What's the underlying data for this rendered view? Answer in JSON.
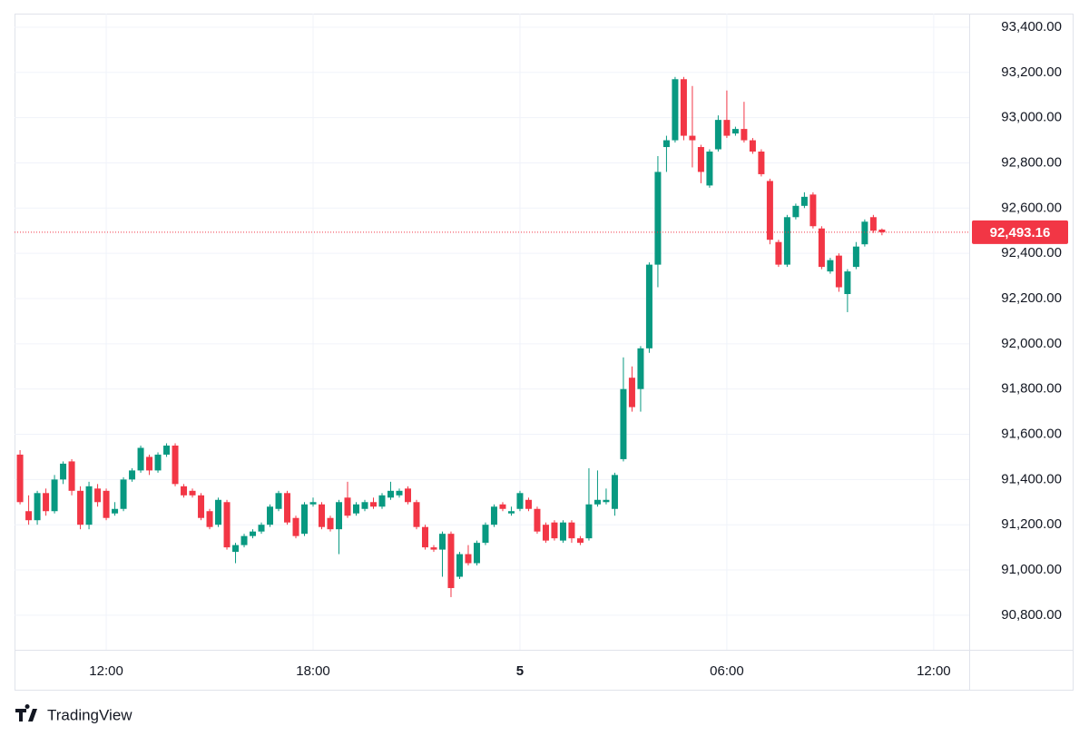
{
  "chart_data": {
    "type": "candlestick",
    "x": [
      -14.5,
      -14.25,
      -14,
      -13.75,
      -13.5,
      -13.25,
      -13,
      -12.75,
      -12.5,
      -12.25,
      -12,
      -11.75,
      -11.5,
      -11.25,
      -11,
      -10.75,
      -10.5,
      -10.25,
      -10,
      -9.75,
      -9.5,
      -9.25,
      -9,
      -8.75,
      -8.5,
      -8.25,
      -8,
      -7.75,
      -7.5,
      -7.25,
      -7,
      -6.75,
      -6.5,
      -6.25,
      -6,
      -5.75,
      -5.5,
      -5.25,
      -5,
      -4.75,
      -4.5,
      -4.25,
      -4,
      -3.75,
      -3.5,
      -3.25,
      -3,
      -2.75,
      -2.5,
      -2.25,
      -2,
      -1.75,
      -1.5,
      -1.25,
      -1,
      -0.75,
      -0.5,
      -0.25,
      0,
      0.25,
      0.5,
      0.75,
      1,
      1.25,
      1.5,
      1.75,
      2,
      2.25,
      2.5,
      2.75,
      3,
      3.25,
      3.5,
      3.75,
      4,
      4.25,
      4.5,
      4.75,
      5,
      5.25,
      5.5,
      5.75,
      6,
      6.25,
      6.5,
      6.75,
      7,
      7.25,
      7.5,
      7.75,
      8,
      8.25,
      8.5,
      8.75,
      9,
      9.25,
      9.5,
      9.75,
      10,
      10.25,
      10.5
    ],
    "open": [
      91510,
      91260,
      91220,
      91340,
      91260,
      91400,
      91480,
      91350,
      91200,
      91360,
      91350,
      91250,
      91270,
      91400,
      91440,
      91500,
      91440,
      91510,
      91550,
      91370,
      91350,
      91330,
      91260,
      91200,
      91300,
      91080,
      91110,
      91150,
      91170,
      91200,
      91270,
      91340,
      91230,
      91160,
      91290,
      91290,
      91230,
      91180,
      91320,
      91250,
      91270,
      91300,
      91280,
      91320,
      91330,
      91360,
      91300,
      91190,
      91100,
      91090,
      91160,
      90970,
      91070,
      91030,
      91120,
      91200,
      91290,
      91250,
      91270,
      91310,
      91270,
      91200,
      91210,
      91130,
      91210,
      91140,
      91140,
      91290,
      91300,
      91270,
      91490,
      91850,
      91800,
      91980,
      92350,
      92870,
      92900,
      93170,
      92920,
      92870,
      92700,
      92860,
      92990,
      92930,
      92950,
      92900,
      92850,
      92720,
      92450,
      92350,
      92560,
      92610,
      92660,
      92510,
      92320,
      92390,
      92220,
      92340,
      92440,
      92560,
      92505
    ],
    "high": [
      91530,
      91330,
      91350,
      91360,
      91420,
      91480,
      91490,
      91370,
      91390,
      91380,
      91360,
      91300,
      91410,
      91450,
      91550,
      91510,
      91520,
      91560,
      91560,
      91380,
      91360,
      91340,
      91270,
      91320,
      91310,
      91120,
      91160,
      91180,
      91210,
      91290,
      91350,
      91350,
      91240,
      91300,
      91320,
      91300,
      91240,
      91310,
      91390,
      91300,
      91310,
      91320,
      91340,
      91390,
      91360,
      91370,
      91310,
      91200,
      91110,
      91170,
      91170,
      91080,
      91110,
      91130,
      91210,
      91290,
      91300,
      91280,
      91350,
      91320,
      91280,
      91210,
      91220,
      91220,
      91220,
      91150,
      91450,
      91440,
      91360,
      91430,
      91940,
      91900,
      91990,
      92360,
      92830,
      92920,
      93180,
      93180,
      93140,
      92880,
      92860,
      93010,
      93120,
      92960,
      93070,
      92910,
      92860,
      92730,
      92460,
      92570,
      92620,
      92670,
      92670,
      92520,
      92380,
      92400,
      92330,
      92450,
      92550,
      92570,
      92510
    ],
    "low": [
      91290,
      91200,
      91200,
      91240,
      91250,
      91380,
      91330,
      91180,
      91180,
      91280,
      91220,
      91240,
      91260,
      91390,
      91430,
      91420,
      91430,
      91500,
      91370,
      91320,
      91320,
      91220,
      91180,
      91190,
      91090,
      91030,
      91100,
      91140,
      91160,
      91190,
      91260,
      91200,
      91140,
      91150,
      91280,
      91180,
      91170,
      91070,
      91230,
      91240,
      91260,
      91270,
      91270,
      91310,
      91320,
      91290,
      91180,
      91090,
      91080,
      90970,
      90880,
      90960,
      91020,
      91020,
      91110,
      91190,
      91260,
      91240,
      91260,
      91260,
      91160,
      91120,
      91130,
      91120,
      91120,
      91110,
      91130,
      91280,
      91290,
      91240,
      91480,
      91700,
      91700,
      91960,
      92250,
      92760,
      92890,
      92900,
      92780,
      92710,
      92690,
      92850,
      92910,
      92920,
      92890,
      92840,
      92740,
      92440,
      92340,
      92340,
      92550,
      92600,
      92510,
      92330,
      92310,
      92230,
      92140,
      92330,
      92430,
      92490,
      92480
    ],
    "close": [
      91300,
      91220,
      91340,
      91260,
      91400,
      91470,
      91350,
      91200,
      91370,
      91300,
      91230,
      91270,
      91400,
      91440,
      91540,
      91440,
      91510,
      91550,
      91380,
      91330,
      91330,
      91230,
      91190,
      91310,
      91100,
      91110,
      91150,
      91170,
      91200,
      91280,
      91340,
      91210,
      91150,
      91290,
      91300,
      91190,
      91180,
      91300,
      91240,
      91290,
      91300,
      91280,
      91330,
      91350,
      91350,
      91300,
      91190,
      91100,
      91090,
      91160,
      90920,
      91070,
      91030,
      91120,
      91200,
      91280,
      91270,
      91260,
      91340,
      91270,
      91170,
      91130,
      91140,
      91210,
      91140,
      91120,
      91290,
      91310,
      91310,
      91420,
      91800,
      91720,
      91980,
      92350,
      92760,
      92900,
      93170,
      92920,
      92900,
      92760,
      92850,
      92990,
      92920,
      92950,
      92900,
      92850,
      92750,
      92460,
      92350,
      92560,
      92610,
      92650,
      92520,
      92340,
      92370,
      92250,
      92320,
      92430,
      92540,
      92500,
      92493.16
    ],
    "up_color": "#089981",
    "down_color": "#f23645",
    "xlim": [
      -14.66,
      13.03
    ],
    "xticks": [
      {
        "value": -12,
        "label": "12:00"
      },
      {
        "value": -6,
        "label": "18:00"
      },
      {
        "value": 0,
        "label": "5"
      },
      {
        "value": 6,
        "label": "06:00"
      },
      {
        "value": 12,
        "label": "12:00"
      }
    ],
    "ylim": [
      90647,
      93460
    ],
    "yticks": [
      {
        "value": 90800,
        "label": "90,800.00"
      },
      {
        "value": 91000,
        "label": "91,000.00"
      },
      {
        "value": 91200,
        "label": "91,200.00"
      },
      {
        "value": 91400,
        "label": "91,400.00"
      },
      {
        "value": 91600,
        "label": "91,600.00"
      },
      {
        "value": 91800,
        "label": "91,800.00"
      },
      {
        "value": 92000,
        "label": "92,000.00"
      },
      {
        "value": 92200,
        "label": "92,200.00"
      },
      {
        "value": 92400,
        "label": "92,400.00"
      },
      {
        "value": 92600,
        "label": "92,600.00"
      },
      {
        "value": 92800,
        "label": "92,800.00"
      },
      {
        "value": 93000,
        "label": "93,000.00"
      },
      {
        "value": 93200,
        "label": "93,200.00"
      },
      {
        "value": 93400,
        "label": "93,400.00"
      }
    ],
    "last_price": {
      "value": 92493.16,
      "label": "92,493.16"
    },
    "grid": true
  },
  "branding": {
    "name": "TradingView"
  }
}
